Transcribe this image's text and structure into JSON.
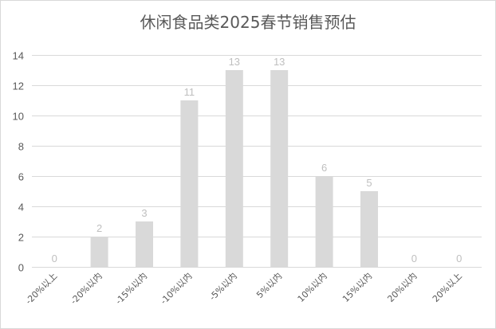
{
  "chart_data": {
    "type": "bar",
    "title": "休闲食品类2025春节销售预估",
    "categories": [
      "-20%以上",
      "-20%以内",
      "-15%以内",
      "-10%以内",
      "-5%以内",
      "5%以内",
      "10%以内",
      "15%以内",
      "20%以内",
      "20%以上"
    ],
    "values": [
      0,
      2,
      3,
      11,
      13,
      13,
      6,
      5,
      0,
      0
    ],
    "ylim": [
      0,
      14
    ],
    "yticks": [
      0,
      2,
      4,
      6,
      8,
      10,
      12,
      14
    ],
    "grid": true,
    "legend": "none",
    "data_labels": true,
    "colors": {
      "bar": "#d9d9d9",
      "gridline": "#d9d9d9",
      "data_label": "#bfbfbf",
      "axis_text": "#595959"
    }
  }
}
